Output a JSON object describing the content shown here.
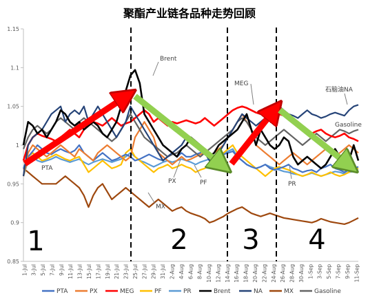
{
  "chart_data": {
    "type": "line",
    "title": "聚酯产业链各品种走势回顾",
    "xlabel": "",
    "ylabel": "",
    "ylim": [
      0.85,
      1.15
    ],
    "yticks": [
      "0.85",
      "0.9",
      "0.95",
      "1",
      "1.05",
      "1.1",
      "1.15"
    ],
    "x_tick_labels": [
      "1-Jul",
      "3-Jul",
      "5-Jul",
      "7-Jul",
      "9-Jul",
      "11-Jul",
      "13-Jul",
      "15-Jul",
      "17-Jul",
      "19-Jul",
      "21-Jul",
      "23-Jul",
      "25-Jul",
      "27-Jul",
      "29-Jul",
      "31-Jul",
      "2-Aug",
      "4-Aug",
      "6-Aug",
      "8-Aug",
      "10-Aug",
      "12-Aug",
      "14-Aug",
      "16-Aug",
      "18-Aug",
      "20-Aug",
      "22-Aug",
      "24-Aug",
      "26-Aug",
      "28-Aug",
      "30-Aug",
      "1-Sep",
      "3-Sep",
      "5-Sep",
      "7-Sep",
      "9-Sep",
      "11-Sep"
    ],
    "grid": false,
    "legend_position": "bottom",
    "colors": {
      "PTA": "#4472C4",
      "PX": "#ED7D31",
      "MEG": "#FF0000",
      "PF": "#FFC000",
      "PR": "#5B9BD5",
      "Brent": "#000000",
      "NA": "#264478",
      "MX": "#9E480E",
      "Gasoline": "#636363"
    },
    "series": [
      {
        "name": "PTA",
        "values": [
          0.97,
          0.985,
          0.992,
          1.0,
          0.995,
          0.99,
          0.988,
          0.992,
          0.995,
          0.992,
          0.99,
          0.993,
          1.0,
          0.99,
          0.985,
          0.98,
          0.985,
          0.99,
          0.985,
          0.98,
          0.982,
          0.985,
          0.988,
          0.985,
          0.98,
          0.982,
          0.985,
          0.988,
          0.985,
          0.982,
          0.98,
          0.985,
          0.99,
          0.985,
          0.99,
          0.985,
          0.985,
          0.988,
          0.99,
          0.995,
          0.985,
          0.982,
          0.985,
          0.988,
          0.99,
          0.992,
          0.985,
          0.98,
          0.975,
          0.972,
          0.97,
          0.972,
          0.975,
          0.97,
          0.968,
          0.97,
          0.972,
          0.975,
          0.97,
          0.968,
          0.965,
          0.967,
          0.968,
          0.965,
          0.97,
          0.972,
          0.975,
          0.97,
          0.968,
          0.965,
          0.968,
          0.97,
          0.972
        ]
      },
      {
        "name": "PX",
        "values": [
          0.96,
          0.99,
          1.0,
          0.995,
          0.99,
          0.985,
          0.99,
          0.995,
          1.0,
          0.995,
          0.99,
          0.985,
          0.995,
          0.99,
          0.985,
          0.98,
          0.99,
          0.995,
          1.0,
          0.995,
          0.99,
          0.985,
          0.98,
          0.985,
          1.01,
          1.02,
          1.03,
          1.02,
          1.01,
          0.99,
          0.985,
          0.98,
          0.975,
          0.98,
          0.985,
          0.98,
          0.982,
          0.985,
          0.988,
          0.99,
          0.985,
          0.99,
          0.995,
          1.0,
          1.01,
          1.02,
          1.03,
          1.04,
          1.03,
          1.02,
          1.0,
          0.995,
          0.99,
          0.985,
          0.98,
          0.975,
          0.98,
          0.985,
          0.99,
          0.985,
          0.98,
          0.975,
          0.98,
          0.985,
          0.99,
          0.995,
          0.99,
          0.985,
          0.99,
          0.995,
          1.0,
          0.995,
          0.99
        ]
      },
      {
        "name": "MEG",
        "values": [
          0.98,
          1.0,
          1.01,
          1.015,
          1.012,
          1.01,
          1.008,
          1.005,
          1.01,
          1.015,
          1.02,
          1.015,
          1.01,
          1.02,
          1.025,
          1.03,
          1.028,
          1.025,
          1.03,
          1.035,
          1.03,
          1.025,
          1.028,
          1.03,
          1.035,
          1.04,
          1.045,
          1.04,
          1.03,
          1.035,
          1.03,
          1.025,
          1.03,
          1.028,
          1.03,
          1.032,
          1.03,
          1.028,
          1.03,
          1.035,
          1.03,
          1.025,
          1.03,
          1.035,
          1.04,
          1.045,
          1.048,
          1.05,
          1.048,
          1.045,
          1.042,
          1.04,
          1.045,
          1.05,
          1.045,
          1.04,
          1.038,
          1.035,
          1.03,
          1.025,
          1.02,
          1.018,
          1.015,
          1.018,
          1.02,
          1.015,
          1.012,
          1.01,
          1.012,
          1.015,
          1.01,
          1.008,
          1.005
        ]
      },
      {
        "name": "PF",
        "values": [
          0.96,
          0.985,
          0.99,
          0.985,
          0.98,
          0.982,
          0.985,
          0.988,
          0.985,
          0.982,
          0.98,
          0.983,
          0.985,
          0.975,
          0.965,
          0.97,
          0.975,
          0.98,
          0.975,
          0.97,
          0.972,
          0.975,
          0.99,
          0.995,
          0.985,
          0.98,
          0.975,
          0.97,
          0.965,
          0.97,
          0.972,
          0.975,
          0.97,
          0.972,
          0.975,
          0.972,
          0.97,
          0.965,
          0.968,
          0.97,
          0.975,
          0.98,
          0.985,
          0.99,
          0.995,
          1.0,
          0.99,
          0.985,
          0.98,
          0.975,
          0.97,
          0.965,
          0.96,
          0.965,
          0.97,
          0.972,
          0.97,
          0.968,
          0.965,
          0.962,
          0.96,
          0.962,
          0.965,
          0.962,
          0.96,
          0.962,
          0.965,
          0.962,
          0.96,
          0.962,
          0.965,
          0.968,
          0.97
        ]
      },
      {
        "name": "PR",
        "values": [
          0.96,
          0.98,
          0.985,
          0.98,
          0.978,
          0.98,
          0.982,
          0.985,
          0.982,
          0.98,
          0.978,
          0.98,
          0.982,
          0.978,
          0.975,
          0.978,
          0.98,
          0.982,
          0.98,
          0.978,
          0.98,
          0.982,
          0.985,
          0.99,
          0.985,
          0.98,
          0.978,
          0.975,
          0.972,
          0.975,
          0.978,
          0.98,
          0.978,
          0.98,
          0.982,
          0.98,
          0.978,
          0.975,
          0.978,
          0.98,
          0.982,
          0.985,
          0.988,
          0.99,
          0.992,
          0.995,
          0.985,
          0.98,
          0.975,
          0.972,
          0.97,
          0.972,
          0.975,
          0.972,
          0.97,
          0.968,
          0.966,
          0.965,
          0.963,
          0.962,
          0.96,
          0.962,
          0.964,
          0.962,
          0.96,
          0.962,
          0.964,
          0.966,
          0.965,
          0.963,
          0.965,
          0.966,
          0.968
        ]
      },
      {
        "name": "Brent",
        "values": [
          1.0,
          1.03,
          1.025,
          1.015,
          1.02,
          1.01,
          1.02,
          1.03,
          1.045,
          1.04,
          1.03,
          1.025,
          1.03,
          1.02,
          1.025,
          1.03,
          1.025,
          1.015,
          1.01,
          1.02,
          1.03,
          1.05,
          1.07,
          1.09,
          1.097,
          1.08,
          1.04,
          1.03,
          1.02,
          1.01,
          1.0,
          0.995,
          0.99,
          0.985,
          0.995,
          1.0,
          1.01,
          1.005,
          1.0,
          0.995,
          0.985,
          0.99,
          1.0,
          1.005,
          1.01,
          1.015,
          1.02,
          1.03,
          1.04,
          1.02,
          1.0,
          1.02,
          1.01,
          1.0,
          0.995,
          1.0,
          1.01,
          1.005,
          0.985,
          0.975,
          0.98,
          0.985,
          0.98,
          0.975,
          0.97,
          0.975,
          0.985,
          0.995,
          0.985,
          0.975,
          0.98,
          1.0,
          0.98
        ]
      },
      {
        "name": "NA",
        "values": [
          0.96,
          1.0,
          1.01,
          1.015,
          1.02,
          1.03,
          1.04,
          1.045,
          1.05,
          1.03,
          1.04,
          1.045,
          1.04,
          1.05,
          1.03,
          1.04,
          1.05,
          1.04,
          1.03,
          1.02,
          1.01,
          1.02,
          1.03,
          1.05,
          1.04,
          1.03,
          1.02,
          1.01,
          1.0,
          0.99,
          0.98,
          0.985,
          0.99,
          0.995,
          1.0,
          1.01,
          1.005,
          1.0,
          0.995,
          0.99,
          0.98,
          0.985,
          0.99,
          1.0,
          1.01,
          1.02,
          1.03,
          1.04,
          1.035,
          1.03,
          1.025,
          1.03,
          1.035,
          1.04,
          1.045,
          1.05,
          1.045,
          1.04,
          1.038,
          1.035,
          1.04,
          1.045,
          1.04,
          1.038,
          1.035,
          1.037,
          1.04,
          1.042,
          1.04,
          1.038,
          1.045,
          1.05,
          1.052
        ]
      },
      {
        "name": "MX",
        "values": [
          0.97,
          0.965,
          0.96,
          0.955,
          0.95,
          0.95,
          0.95,
          0.95,
          0.955,
          0.96,
          0.955,
          0.95,
          0.945,
          0.935,
          0.92,
          0.935,
          0.945,
          0.95,
          0.94,
          0.93,
          0.935,
          0.94,
          0.945,
          0.94,
          0.935,
          0.93,
          0.925,
          0.92,
          0.925,
          0.93,
          0.925,
          0.92,
          0.915,
          0.918,
          0.92,
          0.915,
          0.912,
          0.91,
          0.908,
          0.905,
          0.9,
          0.902,
          0.905,
          0.908,
          0.912,
          0.915,
          0.918,
          0.92,
          0.916,
          0.912,
          0.91,
          0.908,
          0.91,
          0.912,
          0.91,
          0.908,
          0.906,
          0.905,
          0.904,
          0.903,
          0.902,
          0.901,
          0.9,
          0.902,
          0.905,
          0.903,
          0.901,
          0.9,
          0.899,
          0.898,
          0.9,
          0.903,
          0.906
        ]
      },
      {
        "name": "Gasoline",
        "values": [
          0.995,
          1.01,
          1.02,
          1.025,
          1.02,
          1.015,
          1.02,
          1.03,
          1.035,
          1.03,
          1.025,
          1.02,
          1.03,
          1.035,
          1.03,
          1.025,
          1.02,
          1.015,
          1.01,
          1.005,
          1.01,
          1.02,
          1.03,
          1.04,
          1.03,
          1.02,
          1.01,
          1.005,
          1.0,
          0.995,
          0.99,
          0.985,
          0.988,
          0.99,
          0.995,
          1.0,
          0.995,
          0.99,
          0.985,
          0.99,
          0.995,
          1.0,
          1.005,
          1.01,
          1.015,
          1.02,
          1.03,
          1.035,
          1.03,
          1.02,
          1.01,
          1.005,
          1.0,
          1.005,
          1.01,
          1.015,
          1.02,
          1.015,
          1.01,
          1.005,
          1.0,
          1.005,
          1.01,
          1.015,
          1.01,
          1.005,
          1.01,
          1.015,
          1.02,
          1.018,
          1.015,
          1.018,
          1.02
        ]
      }
    ],
    "callouts": [
      "PTA",
      "Brent",
      "PX",
      "PF",
      "MX",
      "MEG",
      "PR",
      "石脑油NA",
      "Gasoline"
    ],
    "phase_numbers": [
      "1",
      "2",
      "3",
      "4"
    ]
  }
}
